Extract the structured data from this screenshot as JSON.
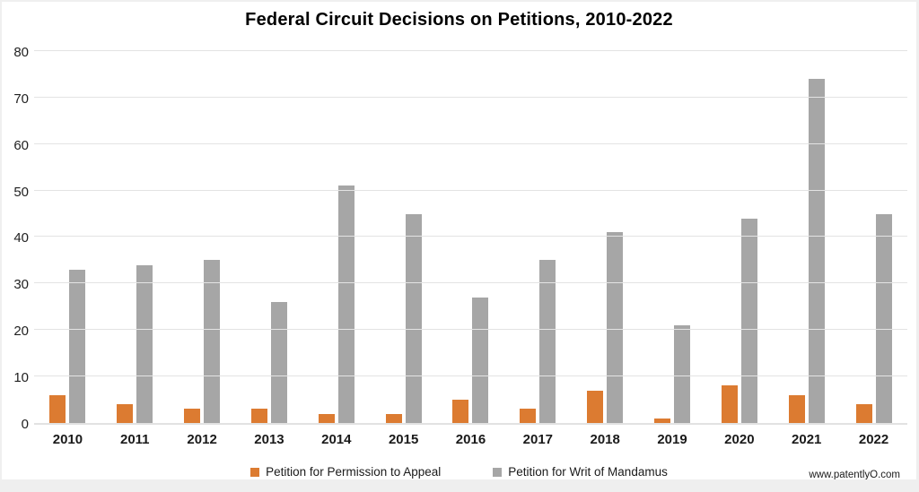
{
  "title": "Federal Circuit Decisions on Petitions, 2010-2022",
  "footer_url": "www.patentlyO.com",
  "chart_data": {
    "type": "bar",
    "title": "Federal Circuit Decisions on Petitions, 2010-2022",
    "categories": [
      "2010",
      "2011",
      "2012",
      "2013",
      "2014",
      "2015",
      "2016",
      "2017",
      "2018",
      "2019",
      "2020",
      "2021",
      "2022"
    ],
    "series": [
      {
        "name": "Petition for Permission to Appeal",
        "color": "#DC7B31",
        "values": [
          6,
          4,
          3,
          3,
          2,
          2,
          5,
          3,
          7,
          1,
          8,
          6,
          4
        ]
      },
      {
        "name": "Petition for Writ of Mandamus",
        "color": "#A6A6A6",
        "values": [
          33,
          34,
          35,
          26,
          51,
          45,
          27,
          35,
          41,
          21,
          44,
          74,
          45
        ]
      }
    ],
    "xlabel": "",
    "ylabel": "",
    "ylim": [
      0,
      80
    ],
    "yticks": [
      0,
      10,
      20,
      30,
      40,
      50,
      60,
      70,
      80
    ],
    "grid": true,
    "legend_position": "bottom",
    "source_label": "www.patentlyO.com"
  }
}
